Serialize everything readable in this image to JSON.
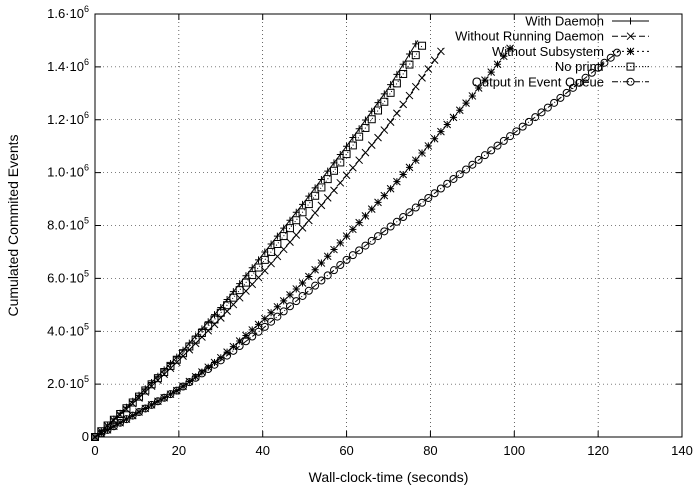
{
  "chart_data": {
    "type": "line",
    "xlabel": "Wall-clock-time (seconds)",
    "ylabel": "Cumulated Commited Events",
    "xlim": [
      0,
      140
    ],
    "ylim": [
      0,
      1600000
    ],
    "x_ticks": [
      {
        "value": 0,
        "label": "0"
      },
      {
        "value": 20,
        "label": "20"
      },
      {
        "value": 40,
        "label": "40"
      },
      {
        "value": 60,
        "label": "60"
      },
      {
        "value": 80,
        "label": "80"
      },
      {
        "value": 100,
        "label": "100"
      },
      {
        "value": 120,
        "label": "120"
      },
      {
        "value": 140,
        "label": "140"
      }
    ],
    "y_ticks": [
      {
        "value": 0,
        "label": "0"
      },
      {
        "value": 200000,
        "label": "2.0·10^5"
      },
      {
        "value": 400000,
        "label": "4.0·10^5"
      },
      {
        "value": 600000,
        "label": "6.0·10^5"
      },
      {
        "value": 800000,
        "label": "8.0·10^5"
      },
      {
        "value": 1000000,
        "label": "1.0·10^6"
      },
      {
        "value": 1200000,
        "label": "1.2·10^6"
      },
      {
        "value": 1400000,
        "label": "1.4·10^6"
      },
      {
        "value": 1600000,
        "label": "1.6·10^6"
      }
    ],
    "grid": true,
    "legend_position": "top-right",
    "series": [
      {
        "name": "With Daemon",
        "marker": "plus",
        "dash": "none",
        "x": [
          0,
          10,
          20,
          30,
          40,
          50,
          60,
          70,
          77
        ],
        "y": [
          0,
          150000,
          310000,
          490000,
          690000,
          890000,
          1100000,
          1320000,
          1500000
        ]
      },
      {
        "name": "Without Running Daemon",
        "marker": "cross",
        "dash": "6 3",
        "x": [
          0,
          10,
          20,
          30,
          40,
          50,
          60,
          70,
          83
        ],
        "y": [
          0,
          140000,
          290000,
          450000,
          620000,
          800000,
          990000,
          1180000,
          1470000
        ]
      },
      {
        "name": "Without Subsystem",
        "marker": "star",
        "dash": "2 3",
        "x": [
          0,
          10,
          20,
          30,
          40,
          50,
          60,
          70,
          80,
          90,
          99
        ],
        "y": [
          0,
          90000,
          180000,
          300000,
          440000,
          590000,
          760000,
          930000,
          1110000,
          1290000,
          1470000
        ]
      },
      {
        "name": "No printf",
        "marker": "square",
        "dash": "1 2",
        "x": [
          0,
          10,
          20,
          30,
          40,
          50,
          60,
          70,
          78
        ],
        "y": [
          0,
          145000,
          300000,
          470000,
          660000,
          860000,
          1070000,
          1290000,
          1480000
        ]
      },
      {
        "name": "Output in Event Queue",
        "marker": "circle",
        "dash": "6 2 1 2",
        "x": [
          0,
          10,
          20,
          30,
          40,
          50,
          60,
          70,
          80,
          90,
          100,
          110,
          125
        ],
        "y": [
          0,
          90000,
          180000,
          290000,
          410000,
          540000,
          670000,
          790000,
          910000,
          1030000,
          1150000,
          1270000,
          1460000
        ]
      }
    ]
  }
}
